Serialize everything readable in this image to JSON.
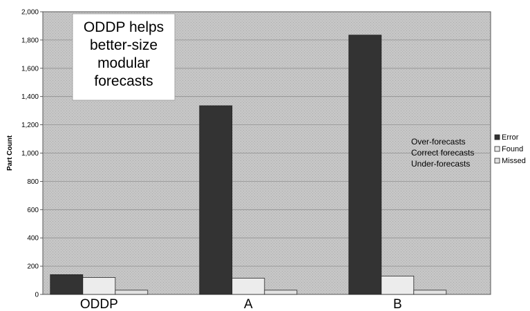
{
  "chart_data": {
    "type": "bar",
    "title": "",
    "xlabel": "",
    "ylabel": "Part Count",
    "ylim": [
      0,
      2000
    ],
    "yticks": [
      "0",
      "200",
      "400",
      "600",
      "800",
      "1,000",
      "1,200",
      "1,400",
      "1,600",
      "1,800",
      "2,000"
    ],
    "categories": [
      "ODDP",
      "A",
      "B"
    ],
    "series": [
      {
        "name": "Error",
        "values": [
          140,
          1335,
          1835
        ],
        "color": "#333333"
      },
      {
        "name": "Found",
        "values": [
          120,
          115,
          130
        ],
        "color": "#ececec"
      },
      {
        "name": "Missed",
        "values": [
          30,
          30,
          30
        ],
        "color": "#e2e2e2"
      }
    ],
    "grid": true,
    "legend": "right",
    "annotations": {
      "callout_lines": [
        "ODDP helps",
        "better-size",
        "modular",
        "forecasts"
      ],
      "meaning_lines": [
        "Over-forecasts",
        "Correct forecasts",
        "Under-forecasts"
      ]
    },
    "colors": {
      "plot_area": "#c4c4c4",
      "gridline": "#8e8e8e"
    }
  }
}
